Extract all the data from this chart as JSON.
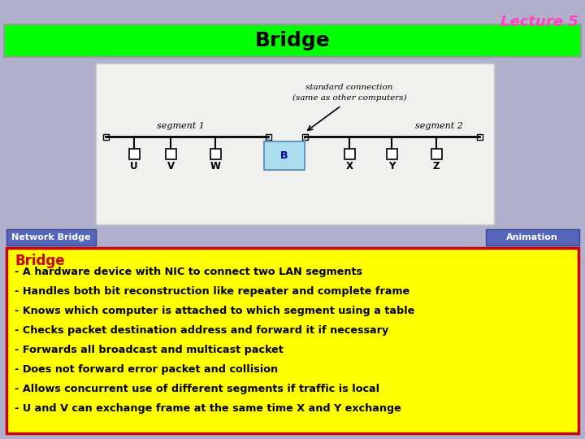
{
  "title": "Lecture 5",
  "slide_title": "Bridge",
  "bg_color": "#b0b0cc",
  "title_color": "#ff44bb",
  "slide_title_bg": "#00ff00",
  "slide_title_text_color": "#000000",
  "network_bridge_label": "Network Bridge",
  "animation_label": "Animation",
  "link_button_bg": "#5566bb",
  "link_button_text_color": "#ffffff",
  "diagram_bg": "#f0f0ee",
  "bridge_box_color": "#aaddee",
  "bridge_box_border": "#6699bb",
  "bullet_title": "Bridge",
  "bullet_title_color": "#cc0000",
  "bullet_bg": "#ffff00",
  "bullet_border": "#cc0000",
  "bullet_text_color": "#000000",
  "bullets": [
    "- A hardware device with NIC to connect two LAN segments",
    "- Handles both bit reconstruction like repeater and complete frame",
    "- Knows which computer is attached to which segment using a table",
    "- Checks packet destination address and forward it if necessary",
    "- Forwards all broadcast and multicast packet",
    "- Does not forward error packet and collision",
    "- Allows concurrent use of different segments if traffic is local",
    "- U and V can exchange frame at the same time X and Y exchange"
  ]
}
